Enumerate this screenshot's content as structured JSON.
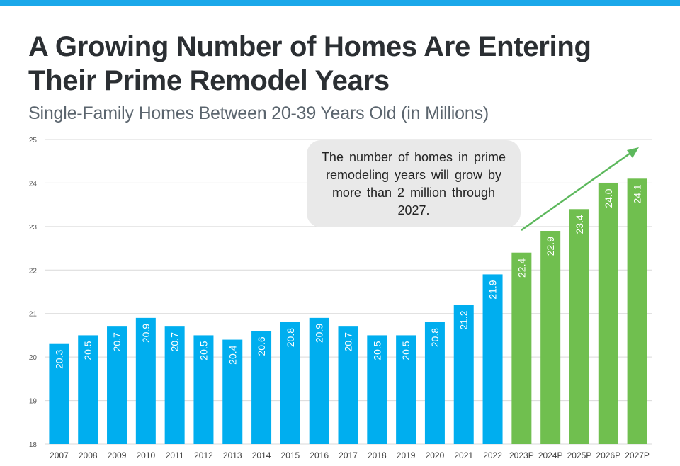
{
  "header": {
    "title": "A Growing Number of Homes Are Entering Their Prime Remodel Years",
    "subtitle": "Single-Family Homes Between 20-39 Years Old (in Millions)"
  },
  "annotation": {
    "text": "The number of homes in prime remodeling years will grow by more than 2 million through 2027."
  },
  "colors": {
    "accent_bar": "#1ba8ea",
    "actual": "#00aeef",
    "projected": "#70bf4f",
    "arrow": "#5cb85c"
  },
  "chart_data": {
    "type": "bar",
    "title": "A Growing Number of Homes Are Entering Their Prime Remodel Years",
    "subtitle": "Single-Family Homes Between 20-39 Years Old (in Millions)",
    "categories": [
      "2007",
      "2008",
      "2009",
      "2010",
      "2011",
      "2012",
      "2013",
      "2014",
      "2015",
      "2016",
      "2017",
      "2018",
      "2019",
      "2020",
      "2021",
      "2022",
      "2023P",
      "2024P",
      "2025P",
      "2026P",
      "2027P"
    ],
    "values": [
      20.3,
      20.5,
      20.7,
      20.9,
      20.7,
      20.5,
      20.4,
      20.6,
      20.8,
      20.9,
      20.7,
      20.5,
      20.5,
      20.8,
      21.2,
      21.9,
      22.4,
      22.9,
      23.4,
      24.0,
      24.1
    ],
    "value_labels": [
      "20.3",
      "20.5",
      "20.7",
      "20.9",
      "20.7",
      "20.5",
      "20.4",
      "20.6",
      "20.8",
      "20.9",
      "20.7",
      "20.5",
      "20.5",
      "20.8",
      "21.2",
      "21.9",
      "22.4",
      "22.9",
      "23.4",
      "24.0",
      "24.1"
    ],
    "projected": [
      false,
      false,
      false,
      false,
      false,
      false,
      false,
      false,
      false,
      false,
      false,
      false,
      false,
      false,
      false,
      false,
      true,
      true,
      true,
      true,
      true
    ],
    "ylim": [
      18,
      25
    ],
    "yticks": [
      "18",
      "19",
      "20",
      "21",
      "22",
      "23",
      "24",
      "25"
    ],
    "xlabel": "",
    "ylabel": "",
    "grid": true,
    "legend": "none"
  }
}
